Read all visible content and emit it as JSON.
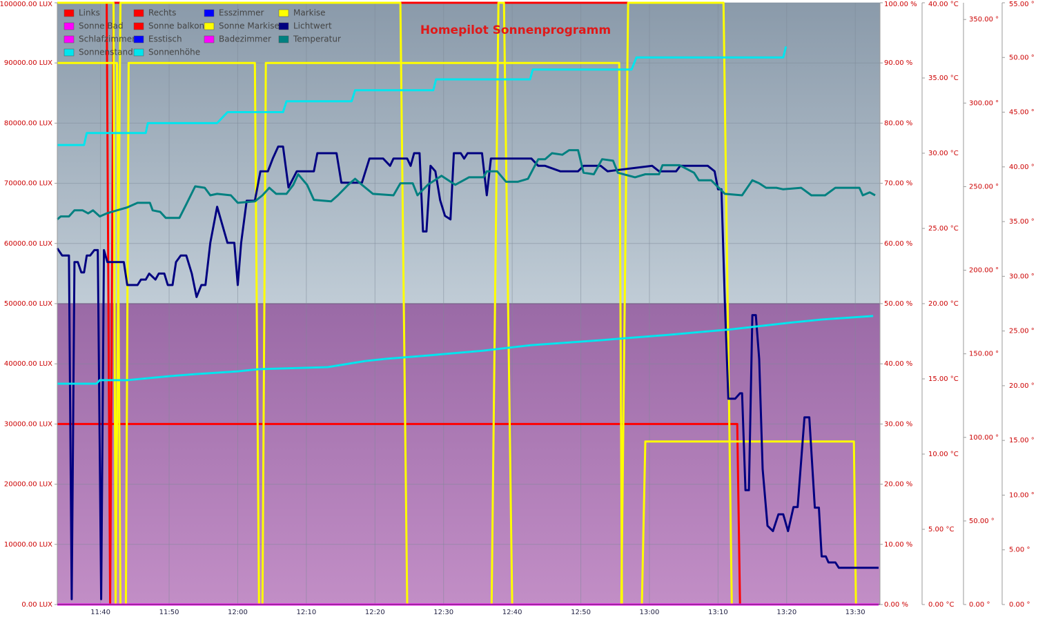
{
  "chart_data": {
    "type": "line",
    "title": "Homepilot Sonnenprogramm",
    "grid": true,
    "xlim": [
      693.7,
      813.6
    ],
    "xticks": [
      {
        "value": 700,
        "label": "11:40"
      },
      {
        "value": 710,
        "label": "11:50"
      },
      {
        "value": 720,
        "label": "12:00"
      },
      {
        "value": 730,
        "label": "12:10"
      },
      {
        "value": 740,
        "label": "12:20"
      },
      {
        "value": 750,
        "label": "12:30"
      },
      {
        "value": 760,
        "label": "12:40"
      },
      {
        "value": 770,
        "label": "12:50"
      },
      {
        "value": 780,
        "label": "13:00"
      },
      {
        "value": 790,
        "label": "13:10"
      },
      {
        "value": 800,
        "label": "13:20"
      },
      {
        "value": 810,
        "label": "13:30"
      }
    ],
    "ylim": [
      0,
      100000
    ],
    "yticks": [
      {
        "value": 0,
        "label": "0.00 LUX"
      },
      {
        "value": 10000,
        "label": "10000.00 LUX"
      },
      {
        "value": 20000,
        "label": "20000.00 LUX"
      },
      {
        "value": 30000,
        "label": "30000.00 LUX"
      },
      {
        "value": 40000,
        "label": "40000.00 LUX"
      },
      {
        "value": 50000,
        "label": "50000.00 LUX"
      },
      {
        "value": 60000,
        "label": "60000.00 LUX"
      },
      {
        "value": 70000,
        "label": "70000.00 LUX"
      },
      {
        "value": 80000,
        "label": "80000.00 LUX"
      },
      {
        "value": 90000,
        "label": "90000.00 LUX"
      },
      {
        "value": 100000,
        "label": "100000.00 LUX"
      }
    ],
    "y2lim": [
      0,
      100
    ],
    "y2ticks": [
      {
        "value": 0,
        "label": "0.00 %"
      },
      {
        "value": 10,
        "label": "10.00 %"
      },
      {
        "value": 20,
        "label": "20.00 %"
      },
      {
        "value": 30,
        "label": "30.00 %"
      },
      {
        "value": 40,
        "label": "40.00 %"
      },
      {
        "value": 50,
        "label": "50.00 %"
      },
      {
        "value": 60,
        "label": "60.00 %"
      },
      {
        "value": 70,
        "label": "70.00 %"
      },
      {
        "value": 80,
        "label": "80.00 %"
      },
      {
        "value": 90,
        "label": "90.00 %"
      },
      {
        "value": 100,
        "label": "100.00 %"
      }
    ],
    "y3lim": [
      0,
      40
    ],
    "y3ticks": [
      {
        "value": 0,
        "label": "0.00 °C"
      },
      {
        "value": 5,
        "label": "5.00 °C"
      },
      {
        "value": 10,
        "label": "10.00 °C"
      },
      {
        "value": 15,
        "label": "15.00 °C"
      },
      {
        "value": 20,
        "label": "20.00 °C"
      },
      {
        "value": 25,
        "label": "25.00 °C"
      },
      {
        "value": 30,
        "label": "30.00 °C"
      },
      {
        "value": 35,
        "label": "35.00 °C"
      },
      {
        "value": 40,
        "label": "40.00 °C"
      }
    ],
    "y4lim": [
      0,
      360
    ],
    "y4ticks": [
      {
        "value": 0,
        "label": "0.00 °"
      },
      {
        "value": 50,
        "label": "50.00 °"
      },
      {
        "value": 100,
        "label": "100.00 °"
      },
      {
        "value": 150,
        "label": "150.00 °"
      },
      {
        "value": 200,
        "label": "200.00 °"
      },
      {
        "value": 250,
        "label": "250.00 °"
      },
      {
        "value": 300,
        "label": "300.00 °"
      },
      {
        "value": 350,
        "label": "350.00 °"
      }
    ],
    "y5lim": [
      0,
      55
    ],
    "y5ticks": [
      {
        "value": 0,
        "label": "0.00 °"
      },
      {
        "value": 5,
        "label": "5.00 °"
      },
      {
        "value": 10,
        "label": "10.00 °"
      },
      {
        "value": 15,
        "label": "15.00 °"
      },
      {
        "value": 20,
        "label": "20.00 °"
      },
      {
        "value": 25,
        "label": "25.00 °"
      },
      {
        "value": 30,
        "label": "30.00 °"
      },
      {
        "value": 35,
        "label": "35.00 °"
      },
      {
        "value": 40,
        "label": "40.00 °"
      },
      {
        "value": 45,
        "label": "45.00 °"
      },
      {
        "value": 50,
        "label": "50.00 °"
      },
      {
        "value": 55,
        "label": "55.00 °"
      }
    ],
    "series": [
      {
        "name": "Links",
        "color": "#ff0000",
        "axis": "y2",
        "x": [
          693.7,
          792.8,
          793.2,
          813.4
        ],
        "values": [
          30,
          30,
          0,
          0
        ]
      },
      {
        "name": "Rechts",
        "color": "#ff0000",
        "axis": "y2",
        "x": [
          700.9,
          701.4,
          701.9,
          776.9
        ],
        "values": [
          100,
          0,
          100,
          100
        ]
      },
      {
        "name": "Esszimmer",
        "color": "#0000ff",
        "axis": "y2",
        "x": [
          693.7,
          813.4
        ],
        "values": [
          0,
          0
        ]
      },
      {
        "name": "Markise",
        "color": "#ffff00",
        "axis": "y2",
        "x": [
          693.7,
          701.9,
          702.2,
          702.9,
          743.7,
          744.7,
          757.0,
          758.0,
          758.8,
          760.0,
          775.9,
          776.9,
          790.8,
          792.0,
          813.4
        ],
        "values": [
          100,
          100,
          0,
          100,
          100,
          0,
          0,
          100,
          100,
          0,
          0,
          100,
          100,
          0,
          0
        ]
      },
      {
        "name": "Sonne Bad",
        "color": "#ff00ff",
        "axis": "y2",
        "x": [
          693.7,
          813.4
        ],
        "values": [
          0,
          0
        ]
      },
      {
        "name": "Sonne balkon",
        "color": "#ff0000",
        "axis": "y2",
        "x": [
          693.7,
          813.4
        ],
        "values": [
          0,
          0
        ]
      },
      {
        "name": "Sonne Markise",
        "color": "#ffff00",
        "axis": "y2",
        "x": [
          693.7,
          702.4,
          702.9,
          703.7,
          704.1,
          722.5,
          723.1,
          723.6,
          724.1,
          775.6,
          776.0,
          778.9,
          779.4,
          809.8,
          810.1,
          813.4
        ],
        "values": [
          90,
          90,
          0,
          0,
          90,
          90,
          0,
          0,
          90,
          90,
          0,
          0,
          27.1,
          27.1,
          0,
          0
        ]
      },
      {
        "name": "Lichtwert",
        "color": "#000080",
        "x": [
          693.7,
          694.4,
          695.4,
          695.8,
          696.2,
          696.7,
          697.2,
          697.6,
          698.0,
          698.5,
          699.1,
          699.6,
          700.1,
          700.5,
          701.0,
          703.4,
          703.9,
          705.4,
          705.9,
          706.6,
          707.1,
          708.0,
          708.5,
          709.3,
          709.8,
          710.5,
          711.0,
          711.7,
          712.5,
          713.3,
          714.0,
          714.7,
          715.3,
          716.0,
          717.0,
          718.5,
          719.5,
          720.0,
          720.5,
          721.3,
          722.5,
          723.3,
          724.4,
          725.1,
          725.9,
          726.6,
          727.4,
          728.6,
          731.1,
          731.6,
          734.4,
          735.1,
          738.1,
          739.2,
          741.2,
          742.2,
          742.7,
          744.7,
          745.2,
          745.7,
          746.5,
          747.0,
          747.5,
          748.1,
          748.8,
          749.5,
          750.2,
          751.0,
          751.5,
          752.5,
          753.0,
          753.5,
          755.6,
          756.3,
          756.9,
          762.8,
          763.8,
          764.8,
          767.0,
          769.6,
          770.4,
          772.9,
          773.9,
          780.4,
          781.4,
          783.9,
          784.5,
          788.5,
          789.5,
          790.0,
          790.5,
          791.0,
          791.5,
          792.5,
          793.2,
          793.5,
          794.0,
          794.5,
          795.0,
          795.5,
          796.0,
          796.5,
          797.2,
          798.0,
          798.8,
          799.5,
          800.2,
          801.0,
          801.6,
          802.6,
          803.3,
          804.1,
          804.7,
          805.1,
          805.7,
          806.1,
          807.1,
          807.6,
          813.4
        ],
        "values": [
          59200,
          58000,
          58000,
          900,
          56900,
          56900,
          55200,
          55200,
          58000,
          58000,
          58900,
          58900,
          900,
          58900,
          56900,
          56900,
          53100,
          53100,
          54000,
          54000,
          55000,
          54000,
          55000,
          55000,
          53100,
          53100,
          56900,
          58000,
          58000,
          55000,
          51100,
          53100,
          53100,
          60100,
          66100,
          60100,
          60100,
          53100,
          60100,
          67100,
          67100,
          72000,
          72000,
          74100,
          76100,
          76100,
          69300,
          72000,
          72000,
          75000,
          75000,
          70100,
          70100,
          74100,
          74100,
          72900,
          74100,
          74100,
          72900,
          75000,
          75000,
          62000,
          62000,
          72900,
          72000,
          67200,
          64600,
          64000,
          75000,
          75000,
          74100,
          75000,
          75000,
          68000,
          74100,
          74100,
          72900,
          72900,
          72000,
          72000,
          72900,
          72900,
          72000,
          72900,
          72000,
          72000,
          72900,
          72900,
          72000,
          69000,
          69000,
          50000,
          34200,
          34200,
          35100,
          35100,
          19000,
          19000,
          48100,
          48100,
          40800,
          22500,
          13100,
          12200,
          15000,
          15000,
          12200,
          16200,
          16200,
          31100,
          31100,
          16100,
          16100,
          8000,
          8000,
          7000,
          7000,
          6100,
          6100
        ]
      },
      {
        "name": "Schlafzimmer",
        "color": "#ff00ff",
        "axis": "y2",
        "x": [
          693.7,
          813.4
        ],
        "values": [
          0,
          0
        ]
      },
      {
        "name": "Esstisch",
        "color": "#0000ff",
        "axis": "y2",
        "x": [
          693.7,
          813.4
        ],
        "values": [
          0,
          0
        ]
      },
      {
        "name": "Badezimmer",
        "color": "#ff00ff",
        "axis": "y2",
        "x": [
          693.7,
          813.4
        ],
        "values": [
          0,
          0
        ]
      },
      {
        "name": "Temperatur",
        "color": "#008080",
        "axis": "y3",
        "x": [
          693.7,
          694.2,
          695.4,
          696.2,
          697.4,
          698.2,
          698.9,
          699.9,
          700.9,
          702.4,
          703.9,
          705.4,
          707.2,
          707.6,
          708.7,
          709.5,
          711.5,
          712.5,
          713.8,
          715.2,
          716.0,
          717.0,
          719.0,
          720.0,
          722.5,
          723.6,
          724.6,
          725.6,
          727.1,
          728.1,
          728.8,
          730.1,
          731.1,
          733.6,
          734.6,
          736.1,
          737.1,
          738.1,
          739.7,
          742.7,
          743.7,
          745.5,
          746.2,
          747.7,
          748.7,
          749.7,
          751.7,
          753.7,
          755.8,
          756.3,
          757.8,
          759.1,
          760.8,
          762.3,
          763.8,
          764.8,
          765.8,
          767.3,
          768.3,
          769.6,
          770.4,
          771.9,
          773.1,
          774.7,
          775.4,
          777.9,
          779.4,
          781.4,
          781.9,
          784.4,
          786.5,
          787.2,
          789.0,
          791.0,
          793.5,
          795.0,
          796.0,
          797.0,
          798.5,
          799.5,
          802.1,
          803.6,
          805.6,
          807.1,
          810.6,
          811.1,
          812.1,
          812.9
        ],
        "values": [
          25.6,
          25.8,
          25.8,
          26.2,
          26.2,
          26.0,
          26.2,
          25.8,
          26.0,
          26.2,
          26.4,
          26.7,
          26.7,
          26.2,
          26.1,
          25.7,
          25.7,
          26.6,
          27.8,
          27.7,
          27.2,
          27.3,
          27.2,
          26.7,
          26.8,
          27.2,
          27.7,
          27.3,
          27.3,
          27.9,
          28.6,
          27.9,
          26.9,
          26.8,
          27.2,
          27.9,
          28.3,
          27.9,
          27.3,
          27.2,
          28.0,
          28.0,
          27.2,
          27.9,
          28.2,
          28.5,
          27.9,
          28.4,
          28.4,
          28.8,
          28.8,
          28.1,
          28.1,
          28.3,
          29.6,
          29.6,
          30.0,
          29.9,
          30.2,
          30.2,
          28.7,
          28.6,
          29.6,
          29.5,
          28.7,
          28.4,
          28.6,
          28.6,
          29.2,
          29.2,
          28.7,
          28.2,
          28.2,
          27.3,
          27.2,
          28.2,
          28.0,
          27.7,
          27.7,
          27.6,
          27.7,
          27.2,
          27.2,
          27.7,
          27.7,
          27.2,
          27.4,
          27.2
        ]
      },
      {
        "name": "Sonnenstand",
        "color": "#00e5ee",
        "axis": "y4",
        "x": [
          693.7,
          699.4,
          699.9,
          703.9,
          710.0,
          714.0,
          720.0,
          723.0,
          733.1,
          738.6,
          741.7,
          747.7,
          755.8,
          762.8,
          772.9,
          776.4,
          782.9,
          792.0,
          800.0,
          805.1,
          812.6
        ],
        "values": [
          132.1,
          132.1,
          134.2,
          134.2,
          136.6,
          137.9,
          139.5,
          140.8,
          142.0,
          145.7,
          147.0,
          149.0,
          151.9,
          155.2,
          158.1,
          159.3,
          161.4,
          164.7,
          168.4,
          170.5,
          172.6
        ]
      },
      {
        "name": "Sonnenhöhe",
        "color": "#00e5ee",
        "axis": "y5",
        "x": [
          693.7,
          697.6,
          698.0,
          706.6,
          706.9,
          717.0,
          718.5,
          726.6,
          727.1,
          736.6,
          737.1,
          748.5,
          748.9,
          762.6,
          763.0,
          777.4,
          778.1,
          799.5,
          799.9
        ],
        "values": [
          42.0,
          42.0,
          43.1,
          43.1,
          44.0,
          44.0,
          45.0,
          45.0,
          46.0,
          46.0,
          47.0,
          47.0,
          48.0,
          48.0,
          48.9,
          48.9,
          50.0,
          50.0,
          51.0
        ]
      }
    ]
  }
}
